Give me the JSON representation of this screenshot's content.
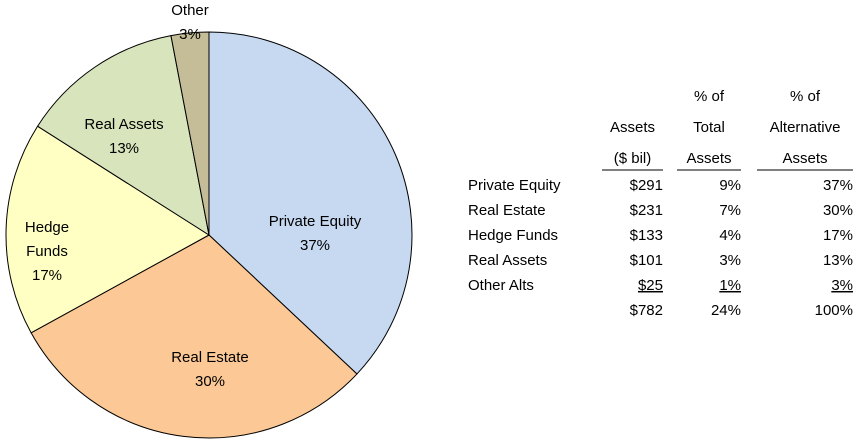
{
  "chart_data": {
    "type": "pie",
    "categories": [
      "Private Equity",
      "Real Estate",
      "Hedge Funds",
      "Real Assets",
      "Other"
    ],
    "values": [
      37,
      30,
      17,
      13,
      3
    ],
    "value_labels": [
      "37%",
      "30%",
      "17%",
      "13%",
      "3%"
    ],
    "colors": [
      "#c6d9f1",
      "#fbc896",
      "#ffffc4",
      "#d8e4bc",
      "#c4bd97"
    ]
  },
  "table": {
    "columns": [
      [
        "Assets",
        "($ bil)"
      ],
      [
        "% of",
        "Total",
        "Assets"
      ],
      [
        "% of",
        "Alternative",
        "Assets"
      ]
    ],
    "rows": [
      [
        "Private Equity",
        "$291",
        "9%",
        "37%"
      ],
      [
        "Real Estate",
        "$231",
        "7%",
        "30%"
      ],
      [
        "Hedge Funds",
        "$133",
        "4%",
        "17%"
      ],
      [
        "Real Assets",
        "$101",
        "3%",
        "13%"
      ],
      [
        "Other Alts",
        "$25",
        "1%",
        "3%"
      ]
    ],
    "total": [
      "$782",
      "24%",
      "100%"
    ]
  }
}
